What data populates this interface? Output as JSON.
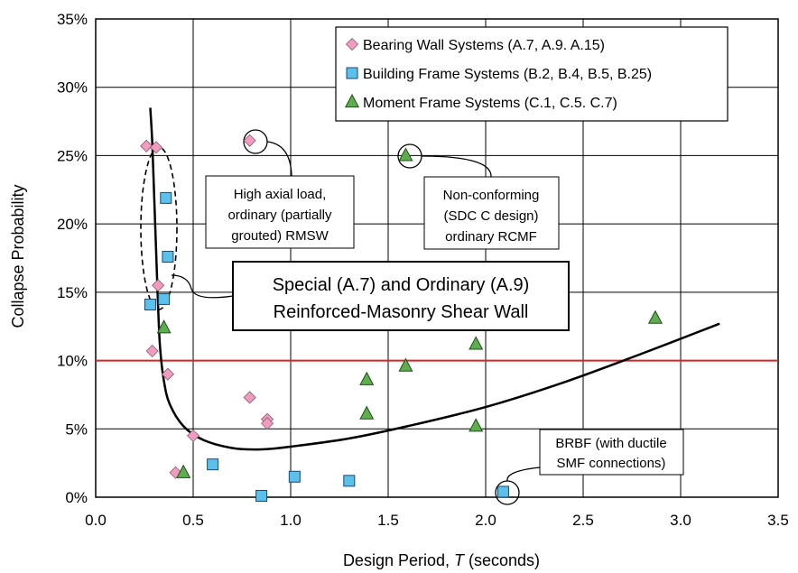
{
  "chart_data": {
    "type": "scatter",
    "title": "",
    "xlabel_prefix": "Design Period, ",
    "xlabel_symbol": "T",
    "xlabel_suffix": " (seconds)",
    "ylabel": "Collapse Probability",
    "xlim": [
      0.0,
      3.5
    ],
    "ylim": [
      0,
      0.35
    ],
    "x_ticks": [
      "0.0",
      "0.5",
      "1.0",
      "1.5",
      "2.0",
      "2.5",
      "3.0",
      "3.5"
    ],
    "x_tick_values": [
      0,
      0.5,
      1.0,
      1.5,
      2.0,
      2.5,
      3.0,
      3.5
    ],
    "y_ticks": [
      "0%",
      "5%",
      "10%",
      "15%",
      "20%",
      "25%",
      "30%",
      "35%"
    ],
    "y_tick_values": [
      0,
      0.05,
      0.1,
      0.15,
      0.2,
      0.25,
      0.3,
      0.35
    ],
    "grid": true,
    "legend_position": "top-right",
    "threshold": {
      "y": 0.1,
      "color": "#e02020"
    },
    "series": [
      {
        "name": "Bearing Wall Systems (A.7, A.9. A.15)",
        "marker": "diamond",
        "color": "#f29bc0",
        "points": [
          [
            0.26,
            0.257
          ],
          [
            0.31,
            0.256
          ],
          [
            0.79,
            0.261
          ],
          [
            0.32,
            0.155
          ],
          [
            0.29,
            0.107
          ],
          [
            0.37,
            0.09
          ],
          [
            0.79,
            0.073
          ],
          [
            0.88,
            0.057
          ],
          [
            0.88,
            0.054
          ],
          [
            0.5,
            0.045
          ],
          [
            0.41,
            0.018
          ]
        ]
      },
      {
        "name": "Building Frame Systems (B.2, B.4, B.5, B.25)",
        "marker": "square",
        "color": "#5bc0eb",
        "points": [
          [
            0.36,
            0.219
          ],
          [
            0.37,
            0.176
          ],
          [
            0.28,
            0.141
          ],
          [
            0.35,
            0.145
          ],
          [
            0.6,
            0.024
          ],
          [
            1.02,
            0.015
          ],
          [
            1.3,
            0.012
          ],
          [
            0.85,
            0.001
          ],
          [
            2.09,
            0.004
          ]
        ]
      },
      {
        "name": "Moment Frame Systems (C.1, C.5. C.7)",
        "marker": "triangle",
        "color": "#5fae4e",
        "points": [
          [
            1.59,
            0.25
          ],
          [
            0.35,
            0.124
          ],
          [
            2.87,
            0.131
          ],
          [
            1.95,
            0.112
          ],
          [
            1.59,
            0.096
          ],
          [
            1.39,
            0.086
          ],
          [
            1.39,
            0.061
          ],
          [
            1.95,
            0.052
          ],
          [
            0.45,
            0.018
          ]
        ]
      }
    ],
    "fitted_curve": [
      [
        0.28,
        0.285
      ],
      [
        0.29,
        0.26
      ],
      [
        0.3,
        0.22
      ],
      [
        0.31,
        0.18
      ],
      [
        0.32,
        0.14
      ],
      [
        0.33,
        0.11
      ],
      [
        0.35,
        0.085
      ],
      [
        0.38,
        0.068
      ],
      [
        0.45,
        0.052
      ],
      [
        0.55,
        0.042
      ],
      [
        0.7,
        0.036
      ],
      [
        0.85,
        0.035
      ],
      [
        1.0,
        0.037
      ],
      [
        1.3,
        0.043
      ],
      [
        1.6,
        0.052
      ],
      [
        2.0,
        0.066
      ],
      [
        2.4,
        0.084
      ],
      [
        2.8,
        0.105
      ],
      [
        3.2,
        0.127
      ]
    ],
    "annotations": {
      "rmsw_box": [
        "Special (A.7) and Ordinary (A.9)",
        "Reinforced-Masonry Shear Wall"
      ],
      "high_axial": [
        "High axial load,",
        "ordinary (partially",
        "grouted) RMSW"
      ],
      "nonconforming": [
        "Non-conforming",
        "(SDC C design)",
        "ordinary RCMF"
      ],
      "brbf": [
        "BRBF (with ductile",
        "SMF connections)"
      ]
    }
  }
}
